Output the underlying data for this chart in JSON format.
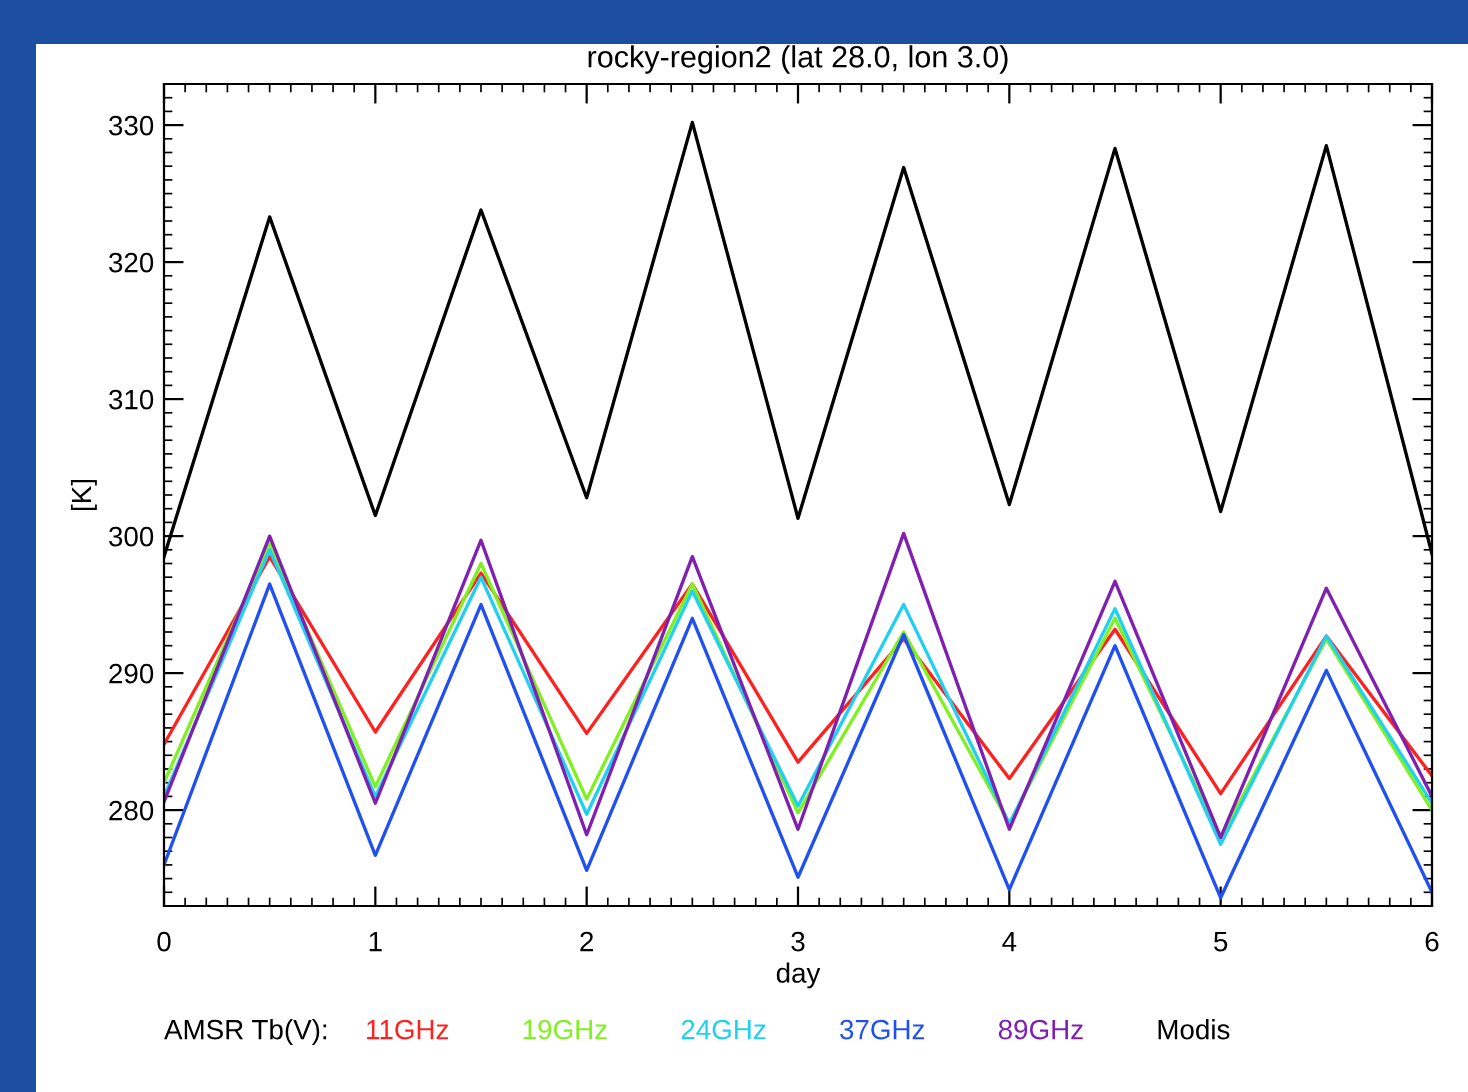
{
  "chart_data": {
    "type": "line",
    "title": "rocky-region2 (lat 28.0, lon 3.0)",
    "xlabel": "day",
    "ylabel": "[K]",
    "legend_title": "AMSR Tb(V):",
    "x": [
      0,
      0.5,
      1,
      1.5,
      2,
      2.5,
      3,
      3.5,
      4,
      4.5,
      5,
      5.5,
      6
    ],
    "xlim": [
      0,
      6
    ],
    "xticks": [
      0,
      1,
      2,
      3,
      4,
      5,
      6
    ],
    "ylim": [
      273,
      333
    ],
    "yticks": [
      280,
      290,
      300,
      310,
      320,
      330
    ],
    "grid": false,
    "legend": "bottom",
    "marker": "none",
    "line_style": "solid",
    "series": [
      {
        "name": "11GHz",
        "color": "#ff2020",
        "values": [
          284.8,
          298.5,
          285.7,
          297.3,
          285.6,
          296.5,
          283.5,
          292.5,
          282.3,
          293.2,
          281.2,
          292.7,
          282.5
        ]
      },
      {
        "name": "19GHz",
        "color": "#80f020",
        "values": [
          282,
          299.5,
          281.7,
          298,
          280.8,
          296.5,
          279.8,
          293,
          279,
          294,
          278,
          292.5,
          280
        ]
      },
      {
        "name": "24GHz",
        "color": "#20d0f0",
        "values": [
          281,
          299,
          281,
          297,
          279.7,
          296,
          280.3,
          295,
          279,
          294.7,
          277.5,
          292.7,
          280.5
        ]
      },
      {
        "name": "37GHz",
        "color": "#2050f0",
        "values": [
          276,
          296.5,
          276.7,
          295,
          275.6,
          294,
          275.1,
          292.8,
          274.2,
          292,
          273.6,
          290.2,
          274
        ]
      },
      {
        "name": "89GHz",
        "color": "#8020b0",
        "values": [
          280.6,
          300,
          280.5,
          299.7,
          278.2,
          298.5,
          278.6,
          300.2,
          278.6,
          296.7,
          278,
          296.2,
          281
        ]
      },
      {
        "name": "Modis",
        "color": "#000000",
        "values": [
          298.5,
          323.3,
          301.5,
          323.8,
          302.8,
          330.2,
          301.3,
          326.9,
          302.3,
          328.3,
          301.8,
          328.5,
          298.7
        ]
      }
    ]
  }
}
